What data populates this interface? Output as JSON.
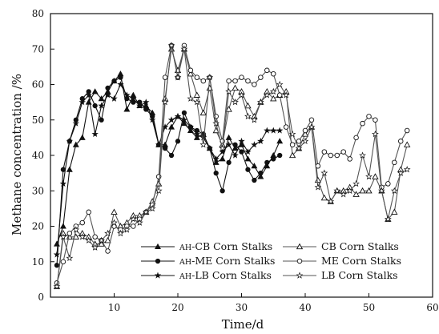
{
  "chart_data": {
    "type": "line",
    "title": "",
    "xlabel": "Time/d",
    "ylabel": "Methane concentration /%",
    "xlim": [
      0,
      60
    ],
    "ylim": [
      0,
      80
    ],
    "x_ticks": [
      10,
      20,
      30,
      40,
      50,
      60
    ],
    "y_ticks": [
      0,
      10,
      20,
      30,
      40,
      50,
      60,
      70,
      80
    ],
    "grid": false,
    "legend_position": "bottom, inside plot, two columns",
    "series": [
      {
        "name": "AH-CB Corn Stalks",
        "marker": "filled-triangle",
        "x": [
          1,
          2,
          3,
          4,
          5,
          6,
          7,
          8,
          9,
          10,
          11,
          12,
          13,
          14,
          15,
          16,
          17,
          18,
          19,
          20,
          21,
          22,
          23,
          24,
          25,
          26,
          27,
          28,
          29,
          30,
          31,
          32,
          33,
          34,
          35,
          36
        ],
        "y": [
          15,
          20,
          36,
          43,
          45,
          55,
          58,
          56,
          58,
          61,
          63,
          53,
          57,
          54,
          54,
          52,
          43,
          43,
          48,
          51,
          49,
          47,
          45,
          46,
          42,
          38,
          39,
          45,
          42,
          43,
          39,
          37,
          34,
          37,
          40,
          44
        ]
      },
      {
        "name": "AH-ME Corn Stalks",
        "marker": "filled-circle",
        "x": [
          1,
          2,
          3,
          4,
          5,
          6,
          7,
          8,
          9,
          10,
          11,
          12,
          13,
          14,
          15,
          16,
          17,
          18,
          19,
          20,
          21,
          22,
          23,
          24,
          25,
          26,
          27,
          28,
          29,
          30,
          31,
          32,
          33,
          34,
          35,
          36
        ],
        "y": [
          9,
          36,
          44,
          50,
          56,
          58,
          54,
          50,
          59,
          61,
          62,
          56,
          55,
          55,
          53,
          51,
          43,
          42,
          40,
          44,
          52,
          48,
          47,
          46,
          42,
          35,
          30,
          38,
          43,
          41,
          36,
          33,
          35,
          38,
          39,
          40
        ]
      },
      {
        "name": "AH-LB Corn Stalks",
        "marker": "star",
        "x": [
          1,
          2,
          3,
          4,
          5,
          6,
          7,
          8,
          9,
          10,
          11,
          12,
          13,
          14,
          15,
          16,
          17,
          18,
          19,
          20,
          21,
          22,
          23,
          24,
          25,
          26,
          27,
          28,
          29,
          30,
          31,
          32,
          33,
          34,
          35,
          36
        ],
        "y": [
          12,
          32,
          44,
          49,
          55,
          57,
          46,
          54,
          57,
          56,
          60,
          57,
          56,
          54,
          55,
          50,
          43,
          48,
          50,
          51,
          50,
          48,
          46,
          45,
          42,
          39,
          41,
          43,
          40,
          44,
          41,
          43,
          44,
          47,
          47,
          47
        ]
      },
      {
        "name": "CB Corn Stalks",
        "marker": "open-triangle",
        "x": [
          1,
          2,
          3,
          4,
          5,
          6,
          7,
          8,
          9,
          10,
          11,
          12,
          13,
          14,
          15,
          16,
          17,
          18,
          19,
          20,
          21,
          22,
          23,
          24,
          25,
          26,
          27,
          28,
          29,
          30,
          31,
          32,
          33,
          34,
          35,
          36,
          37,
          38,
          39,
          40,
          41,
          42,
          43,
          44,
          45,
          46,
          47,
          48,
          49,
          50,
          51,
          52,
          53,
          54,
          55,
          56
        ],
        "y": [
          3,
          18,
          17,
          17,
          18,
          17,
          15,
          15,
          16,
          24,
          20,
          21,
          23,
          23,
          24,
          27,
          32,
          56,
          70,
          64,
          70,
          63,
          57,
          52,
          59,
          47,
          43,
          53,
          59,
          58,
          54,
          51,
          55,
          58,
          56,
          57,
          58,
          40,
          42,
          46,
          48,
          33,
          28,
          27,
          30,
          30,
          31,
          29,
          30,
          30,
          34,
          30,
          22,
          24,
          36,
          43
        ]
      },
      {
        "name": "ME Corn Stalks",
        "marker": "open-circle",
        "x": [
          1,
          2,
          3,
          4,
          5,
          6,
          7,
          8,
          9,
          10,
          11,
          12,
          13,
          14,
          15,
          16,
          17,
          18,
          19,
          20,
          21,
          22,
          23,
          24,
          25,
          26,
          27,
          28,
          29,
          30,
          31,
          32,
          33,
          34,
          35,
          36,
          37,
          38,
          39,
          40,
          41,
          42,
          43,
          44,
          45,
          46,
          47,
          48,
          49,
          50,
          51,
          52,
          53,
          54,
          55,
          56
        ],
        "y": [
          4,
          10,
          18,
          20,
          21,
          24,
          17,
          16,
          13,
          20,
          19,
          20,
          20,
          22,
          24,
          26,
          34,
          62,
          71,
          62,
          71,
          64,
          62,
          61,
          62,
          51,
          44,
          61,
          61,
          62,
          61,
          60,
          62,
          64,
          63,
          57,
          48,
          43,
          44,
          47,
          50,
          37,
          41,
          40,
          40,
          41,
          39,
          45,
          49,
          51,
          50,
          31,
          32,
          38,
          44,
          47
        ]
      },
      {
        "name": "LB Corn Stalks",
        "marker": "open-star",
        "x": [
          1,
          2,
          3,
          4,
          5,
          6,
          7,
          8,
          9,
          10,
          11,
          12,
          13,
          14,
          15,
          16,
          17,
          18,
          19,
          20,
          21,
          22,
          23,
          24,
          25,
          26,
          27,
          28,
          29,
          30,
          31,
          32,
          33,
          34,
          35,
          36,
          37,
          38,
          39,
          40,
          41,
          42,
          43,
          44,
          45,
          46,
          47,
          48,
          49,
          50,
          51,
          52,
          53,
          54,
          55,
          56
        ],
        "y": [
          3,
          17,
          11,
          19,
          17,
          16,
          14,
          16,
          18,
          21,
          18,
          19,
          22,
          21,
          24,
          25,
          30,
          55,
          71,
          62,
          70,
          56,
          55,
          43,
          62,
          49,
          42,
          58,
          55,
          57,
          51,
          50,
          55,
          57,
          58,
          60,
          57,
          46,
          42,
          44,
          48,
          31,
          35,
          27,
          30,
          29,
          30,
          32,
          40,
          34,
          46,
          30,
          22,
          30,
          35,
          36
        ]
      }
    ]
  },
  "ui": {
    "legend_entries": [
      {
        "prefix": "AH",
        "label": "-CB  Corn Stalks"
      },
      {
        "prefix": "",
        "label": "CB Corn Stalks"
      },
      {
        "prefix": "AH",
        "label": "-ME Corn Stalks"
      },
      {
        "prefix": "",
        "label": "ME Corn Stalks"
      },
      {
        "prefix": "AH",
        "label": "-LB  Corn Stalks"
      },
      {
        "prefix": "",
        "label": "LB Corn Stalks"
      }
    ]
  }
}
